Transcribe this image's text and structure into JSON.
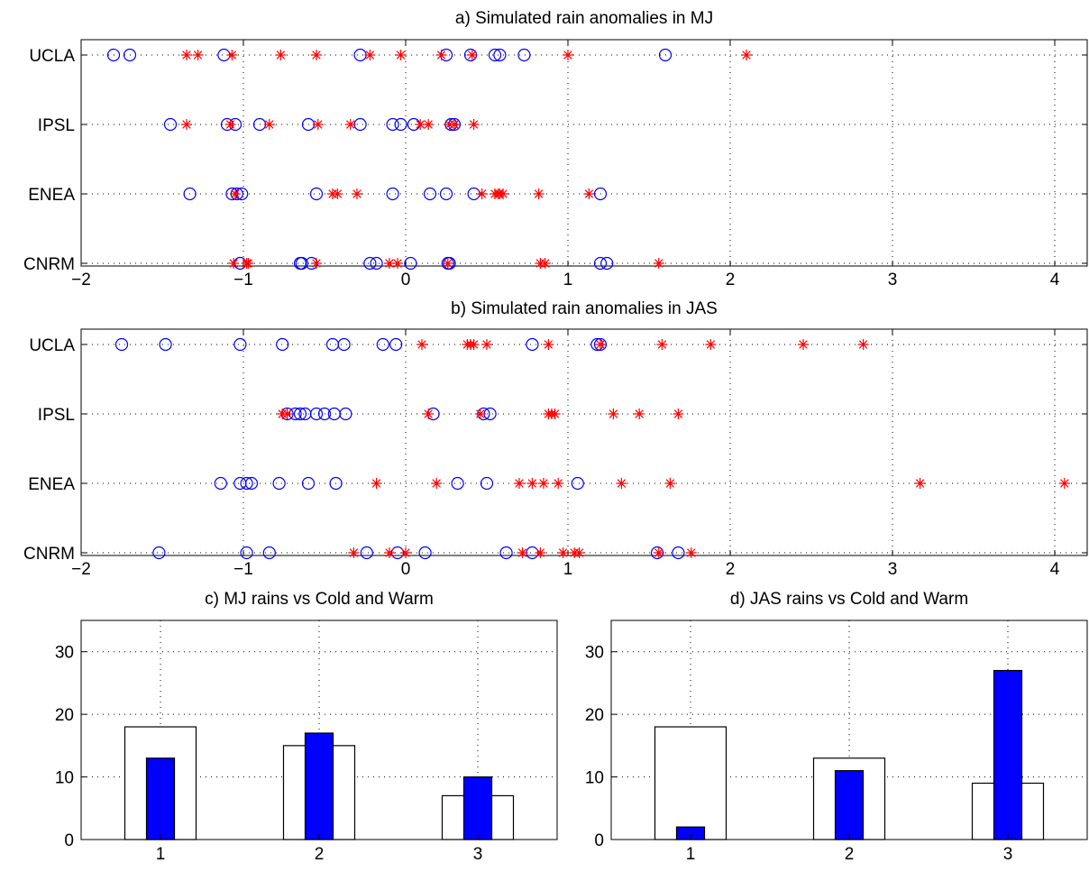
{
  "chart_data": [
    {
      "id": "a",
      "type": "scatter",
      "title": "a) Simulated rain anomalies in MJ",
      "categories": [
        "CNRM",
        "ENEA",
        "IPSL",
        "UCLA"
      ],
      "xlim": [
        -2,
        4.2
      ],
      "xticks": [
        -2,
        -1,
        0,
        1,
        2,
        3,
        4
      ],
      "grid": true,
      "series": [
        {
          "marker": "circle",
          "color": "#0000ff",
          "points": {
            "UCLA": [
              -1.8,
              -1.7,
              -1.12,
              -0.28,
              0.25,
              0.4,
              0.55,
              0.58,
              0.73,
              1.6
            ],
            "IPSL": [
              -1.45,
              -1.1,
              -1.05,
              -0.9,
              -0.6,
              -0.28,
              -0.08,
              -0.03,
              0.05,
              0.28,
              0.3
            ],
            "ENEA": [
              -1.33,
              -1.07,
              -1.04,
              -1.01,
              -0.55,
              -0.08,
              0.15,
              0.25,
              0.42,
              1.2
            ],
            "CNRM": [
              -1.02,
              -0.65,
              -0.64,
              -0.58,
              -0.22,
              -0.18,
              0.03,
              0.26,
              0.27,
              1.2,
              1.24
            ]
          }
        },
        {
          "marker": "asterisk",
          "color": "#ff0000",
          "points": {
            "UCLA": [
              -1.35,
              -1.28,
              -1.07,
              -0.77,
              -0.55,
              -0.22,
              -0.03,
              0.22,
              0.41,
              1.0,
              2.1
            ],
            "IPSL": [
              -1.35,
              -1.08,
              -0.84,
              -0.54,
              -0.34,
              0.09,
              0.14,
              0.27,
              0.3,
              0.42
            ],
            "ENEA": [
              -1.05,
              -0.45,
              -0.42,
              -0.3,
              0.47,
              0.55,
              0.57,
              0.58,
              0.6,
              0.82,
              1.13
            ],
            "CNRM": [
              -1.06,
              -0.98,
              -0.97,
              -0.55,
              -0.1,
              -0.05,
              0.26,
              0.83,
              0.86,
              1.56
            ]
          }
        }
      ]
    },
    {
      "id": "b",
      "type": "scatter",
      "title": "b) Simulated rain anomalies in JAS",
      "categories": [
        "CNRM",
        "ENEA",
        "IPSL",
        "UCLA"
      ],
      "xlim": [
        -2,
        4.2
      ],
      "xticks": [
        -2,
        -1,
        0,
        1,
        2,
        3,
        4
      ],
      "grid": true,
      "series": [
        {
          "marker": "circle",
          "color": "#0000ff",
          "points": {
            "UCLA": [
              -1.75,
              -1.48,
              -1.02,
              -0.76,
              -0.45,
              -0.38,
              -0.14,
              -0.06,
              0.78,
              1.18,
              1.2
            ],
            "IPSL": [
              -0.73,
              -0.68,
              -0.65,
              -0.62,
              -0.55,
              -0.5,
              -0.44,
              -0.37,
              0.17,
              0.48,
              0.52
            ],
            "ENEA": [
              -1.14,
              -1.02,
              -0.98,
              -0.95,
              -0.78,
              -0.6,
              -0.43,
              0.32,
              0.5,
              1.06
            ],
            "CNRM": [
              -1.52,
              -0.98,
              -0.84,
              -0.24,
              -0.05,
              0.12,
              0.62,
              0.78,
              1.55,
              1.68
            ]
          }
        },
        {
          "marker": "asterisk",
          "color": "#ff0000",
          "points": {
            "UCLA": [
              0.1,
              0.38,
              0.4,
              0.42,
              0.5,
              0.88,
              1.2,
              1.58,
              1.88,
              2.45,
              2.82
            ],
            "IPSL": [
              -0.76,
              -0.73,
              0.14,
              0.46,
              0.88,
              0.9,
              0.92,
              1.28,
              1.44,
              1.68
            ],
            "ENEA": [
              -0.18,
              0.19,
              0.7,
              0.78,
              0.85,
              0.94,
              1.33,
              1.63,
              3.17,
              4.06
            ],
            "CNRM": [
              -0.32,
              -0.1,
              0.0,
              0.72,
              0.83,
              0.97,
              1.04,
              1.07,
              1.56,
              1.76
            ]
          }
        }
      ]
    },
    {
      "id": "c",
      "type": "bar",
      "title": "c) MJ rains vs Cold and Warm",
      "categories": [
        "1",
        "2",
        "3"
      ],
      "ylim": [
        0,
        35
      ],
      "yticks": [
        0,
        10,
        20,
        30
      ],
      "grid": true,
      "series": [
        {
          "style": "outline-wide",
          "color": "#ffffff",
          "values": [
            18,
            15,
            7
          ]
        },
        {
          "style": "filled-narrow",
          "color": "#0000ff",
          "values": [
            13,
            17,
            10
          ]
        }
      ]
    },
    {
      "id": "d",
      "type": "bar",
      "title": "d) JAS rains vs Cold and Warm",
      "categories": [
        "1",
        "2",
        "3"
      ],
      "ylim": [
        0,
        35
      ],
      "yticks": [
        0,
        10,
        20,
        30
      ],
      "grid": true,
      "series": [
        {
          "style": "outline-wide",
          "color": "#ffffff",
          "values": [
            18,
            13,
            9
          ]
        },
        {
          "style": "filled-narrow",
          "color": "#0000ff",
          "values": [
            2,
            11,
            27
          ]
        }
      ]
    }
  ]
}
